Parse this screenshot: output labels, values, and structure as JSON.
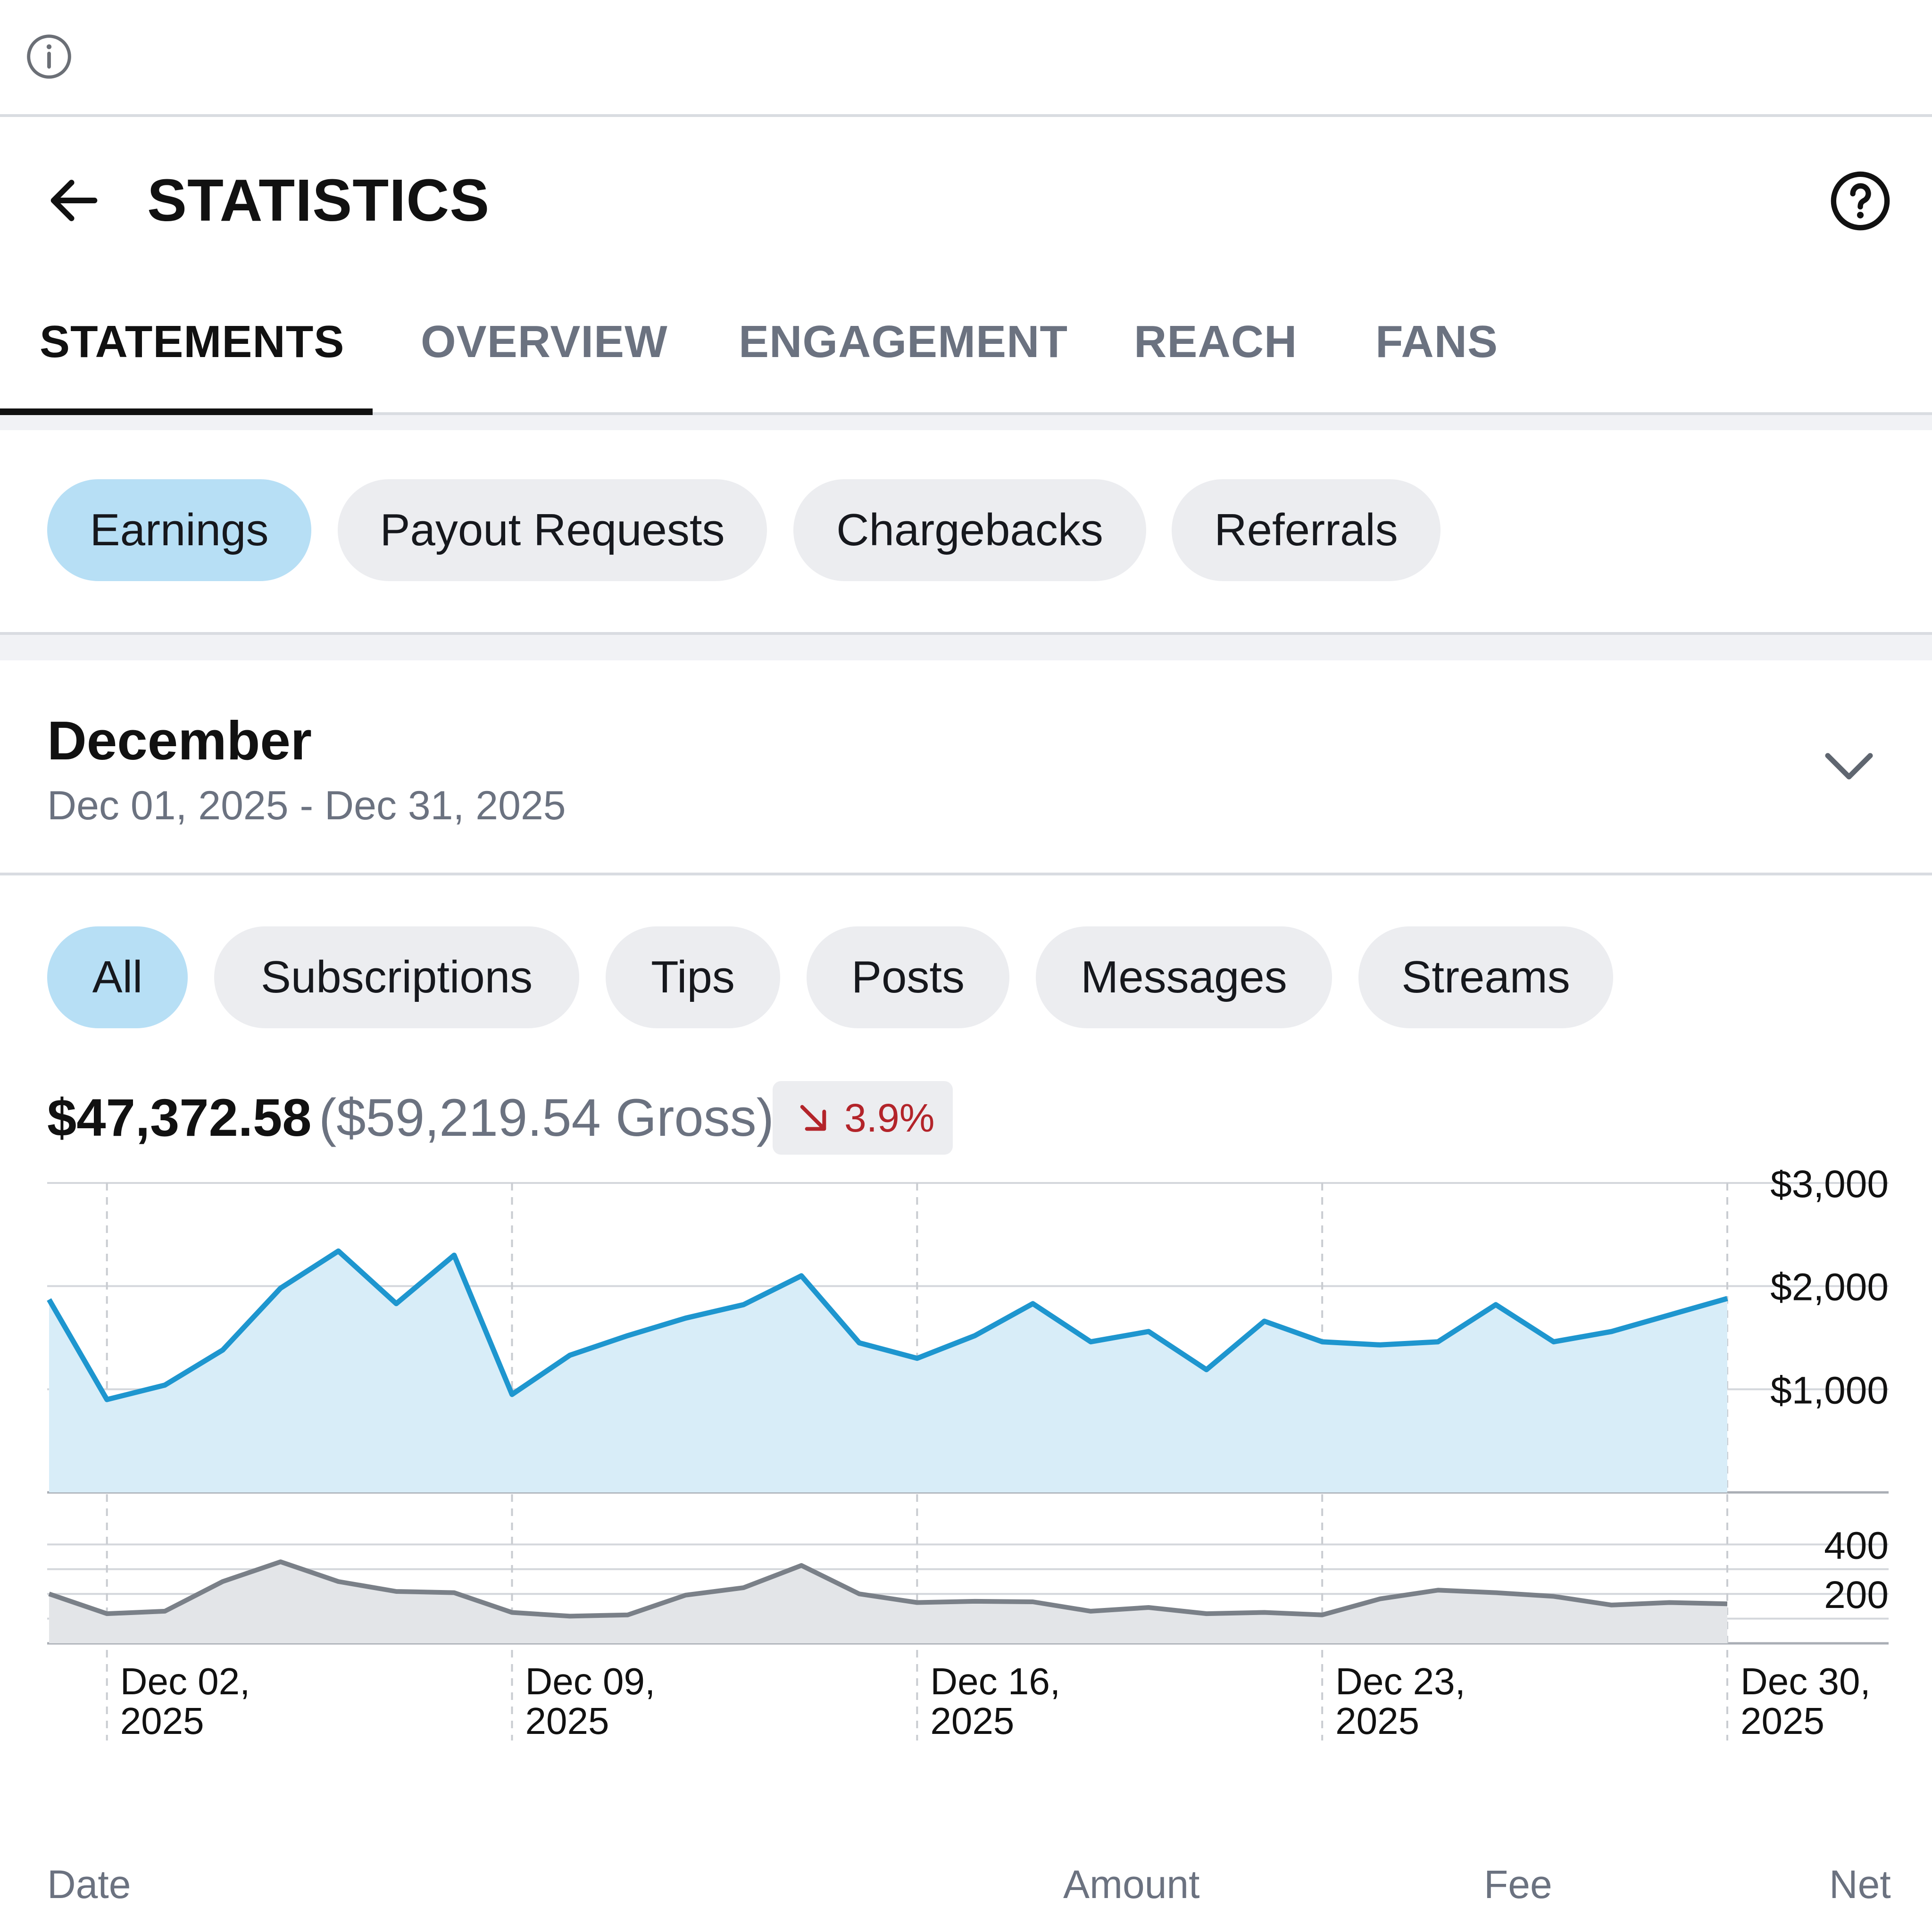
{
  "header": {
    "title": "STATISTICS"
  },
  "tabs": [
    {
      "label": "STATEMENTS",
      "active": true
    },
    {
      "label": "OVERVIEW",
      "active": false
    },
    {
      "label": "ENGAGEMENT",
      "active": false
    },
    {
      "label": "REACH",
      "active": false
    },
    {
      "label": "FANS",
      "active": false
    }
  ],
  "statement_types": [
    {
      "label": "Earnings",
      "active": true
    },
    {
      "label": "Payout Requests",
      "active": false
    },
    {
      "label": "Chargebacks",
      "active": false
    },
    {
      "label": "Referrals",
      "active": false
    }
  ],
  "period": {
    "title": "December",
    "range": "Dec 01, 2025 - Dec 31, 2025"
  },
  "categories": [
    {
      "label": "All",
      "active": true
    },
    {
      "label": "Subscriptions",
      "active": false
    },
    {
      "label": "Tips",
      "active": false
    },
    {
      "label": "Posts",
      "active": false
    },
    {
      "label": "Messages",
      "active": false
    },
    {
      "label": "Streams",
      "active": false
    }
  ],
  "summary": {
    "net": "$47,372.58",
    "gross": "($59,219.54 Gross)",
    "change": "3.9%",
    "change_direction": "down"
  },
  "colors": {
    "accent": "#1e96cf",
    "accent_fill": "#d8edf8",
    "secondary_line": "#7a8088",
    "negative": "#b3242a",
    "active_pill": "#b7dff5"
  },
  "icons": {
    "info": "info-circle-icon",
    "back": "arrow-left-icon",
    "help": "question-circle-icon",
    "period": "chevron-down-icon",
    "change": "arrow-down-right-icon"
  },
  "chart_data": [
    {
      "type": "area",
      "name": "earnings",
      "x": [
        "Dec 01",
        "Dec 02",
        "Dec 03",
        "Dec 04",
        "Dec 05",
        "Dec 06",
        "Dec 07",
        "Dec 08",
        "Dec 09",
        "Dec 10",
        "Dec 11",
        "Dec 12",
        "Dec 13",
        "Dec 14",
        "Dec 15",
        "Dec 16",
        "Dec 17",
        "Dec 18",
        "Dec 19",
        "Dec 20",
        "Dec 21",
        "Dec 22",
        "Dec 23",
        "Dec 24",
        "Dec 25",
        "Dec 26",
        "Dec 27",
        "Dec 28",
        "Dec 29",
        "Dec 30"
      ],
      "series": [
        {
          "values": [
            1870,
            900,
            1040,
            1380,
            1980,
            2340,
            1830,
            2300,
            950,
            1330,
            1520,
            1690,
            1820,
            2100,
            1450,
            1300,
            1520,
            1830,
            1460,
            1560,
            1190,
            1660,
            1460,
            1430,
            1460,
            1820,
            1460,
            1560,
            1720,
            1880
          ]
        }
      ],
      "ylim": [
        0,
        3000
      ],
      "yticks": [
        "$3,000",
        "$2,000",
        "$1,000"
      ],
      "grid": true
    },
    {
      "type": "area",
      "name": "count",
      "x": [
        "Dec 01",
        "Dec 02",
        "Dec 03",
        "Dec 04",
        "Dec 05",
        "Dec 06",
        "Dec 07",
        "Dec 08",
        "Dec 09",
        "Dec 10",
        "Dec 11",
        "Dec 12",
        "Dec 13",
        "Dec 14",
        "Dec 15",
        "Dec 16",
        "Dec 17",
        "Dec 18",
        "Dec 19",
        "Dec 20",
        "Dec 21",
        "Dec 22",
        "Dec 23",
        "Dec 24",
        "Dec 25",
        "Dec 26",
        "Dec 27",
        "Dec 28",
        "Dec 29",
        "Dec 30"
      ],
      "series": [
        {
          "values": [
            200,
            120,
            130,
            250,
            330,
            250,
            210,
            205,
            125,
            110,
            115,
            195,
            225,
            315,
            200,
            165,
            170,
            168,
            130,
            145,
            120,
            125,
            115,
            180,
            215,
            205,
            190,
            155,
            165,
            160
          ]
        }
      ],
      "ylim": [
        0,
        500
      ],
      "yticks": [
        "400",
        "200"
      ],
      "grid": true
    }
  ],
  "x_axis_labels": [
    {
      "line1": "Dec 02,",
      "line2": "2025"
    },
    {
      "line1": "Dec 09,",
      "line2": "2025"
    },
    {
      "line1": "Dec 16,",
      "line2": "2025"
    },
    {
      "line1": "Dec 23,",
      "line2": "2025"
    },
    {
      "line1": "Dec 30,",
      "line2": "2025"
    }
  ],
  "table": {
    "columns": [
      "Date",
      "Amount",
      "Fee",
      "Net"
    ]
  }
}
